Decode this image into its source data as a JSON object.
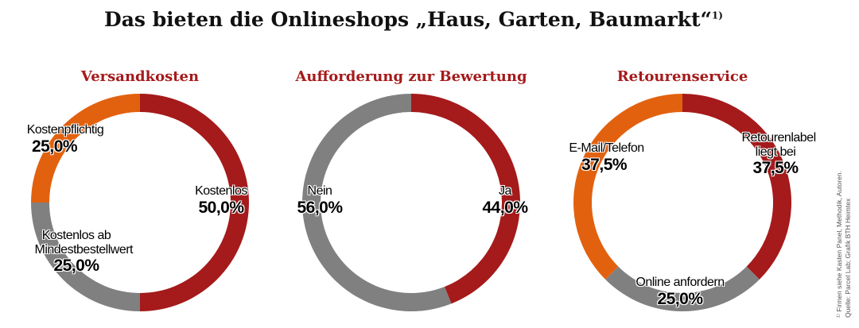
{
  "title": "Das bieten die Onlineshops „Haus, Garten, Baumarkt“",
  "title_footnote": "1)",
  "source_note": {
    "line1": "¹⁾ Firmen siehe Kasten Panel, Methodik, Autoren.",
    "line2": "Quelle: Parcel Lab; Grafik BTH Heimtex"
  },
  "colors": {
    "red": "#a51a1b",
    "orange": "#e2610f",
    "gray": "#808080",
    "subtitle": "#a51a1b"
  },
  "chart_data": [
    {
      "type": "pie",
      "title": "Versandkosten",
      "slices": [
        {
          "label": "Kostenlos",
          "value": 50.0,
          "display": "50,0%",
          "color": "#a51a1b"
        },
        {
          "label": "Kostenlos ab Mindestbestellwert",
          "value": 25.0,
          "display": "25,0%",
          "color": "#808080"
        },
        {
          "label": "Kostenpflichtig",
          "value": 25.0,
          "display": "25,0%",
          "color": "#e2610f"
        }
      ]
    },
    {
      "type": "pie",
      "title": "Aufforderung zur Bewertung",
      "slices": [
        {
          "label": "Ja",
          "value": 44.0,
          "display": "44,0%",
          "color": "#a51a1b"
        },
        {
          "label": "Nein",
          "value": 56.0,
          "display": "56,0%",
          "color": "#808080"
        }
      ]
    },
    {
      "type": "pie",
      "title": "Retourenservice",
      "slices": [
        {
          "label": "Retourenlabel liegt bei",
          "value": 37.5,
          "display": "37,5%",
          "color": "#a51a1b"
        },
        {
          "label": "Online anfordern",
          "value": 25.0,
          "display": "25,0%",
          "color": "#808080"
        },
        {
          "label": "E-Mail/Telefon",
          "value": 37.5,
          "display": "37,5%",
          "color": "#e2610f"
        }
      ]
    }
  ]
}
